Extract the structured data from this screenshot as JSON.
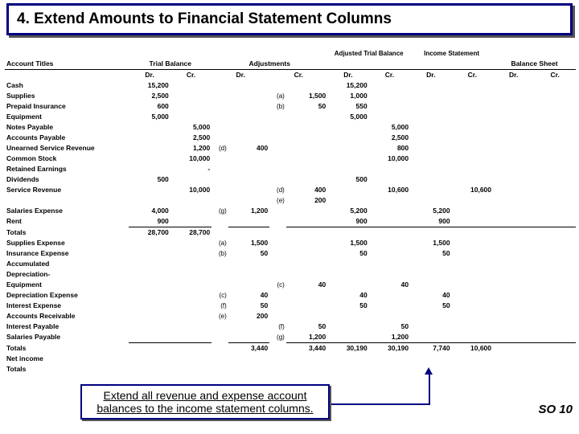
{
  "title": "4. Extend Amounts to Financial Statement Columns",
  "headers": {
    "acct": "Account Titles",
    "cols": [
      "Trial Balance",
      "Adjustments",
      "Adjusted Trial Balance",
      "Income Statement",
      "Balance Sheet"
    ],
    "drcr": [
      "Dr.",
      "Cr."
    ]
  },
  "rows": [
    {
      "acct": "Cash",
      "tb_dr": "15,200",
      "atb_dr": "15,200"
    },
    {
      "acct": "Supplies",
      "tb_dr": "2,500",
      "adj_cr_ref": "(a)",
      "adj_cr": "1,500",
      "atb_dr": "1,000"
    },
    {
      "acct": "Prepaid Insurance",
      "tb_dr": "600",
      "adj_cr_ref": "(b)",
      "adj_cr": "50",
      "atb_dr": "550"
    },
    {
      "acct": "Equipment",
      "tb_dr": "5,000",
      "atb_dr": "5,000"
    },
    {
      "acct": "Notes Payable",
      "tb_cr": "5,000",
      "atb_cr": "5,000"
    },
    {
      "acct": "Accounts Payable",
      "tb_cr": "2,500",
      "atb_cr": "2,500"
    },
    {
      "acct": "Unearned Service Revenue",
      "tb_cr": "1,200",
      "adj_dr_ref": "(d)",
      "adj_dr": "400",
      "atb_cr": "800"
    },
    {
      "acct": "Common Stock",
      "tb_cr": "10,000",
      "atb_cr": "10,000"
    },
    {
      "acct": "Retained Earnings",
      "tb_cr": "-"
    },
    {
      "acct": "Dividends",
      "tb_dr": "500",
      "atb_dr": "500"
    },
    {
      "acct": "Service Revenue",
      "tb_cr": "10,000",
      "adj_cr_ref": "(d)",
      "adj_cr": "400",
      "atb_cr": "10,600",
      "is_cr": "10,600"
    },
    {
      "acct": "",
      "adj_cr_ref": "(e)",
      "adj_cr": "200"
    },
    {
      "acct": "Salaries Expense",
      "tb_dr": "4,000",
      "adj_dr_ref": "(g)",
      "adj_dr": "1,200",
      "atb_dr": "5,200",
      "is_dr": "5,200"
    },
    {
      "acct": "Rent",
      "tb_dr": "900",
      "atb_dr": "900",
      "is_dr": "900"
    },
    {
      "acct": "   Totals",
      "tb_dr": "28,700",
      "tb_cr": "28,700",
      "tot": true
    },
    {
      "acct": "Supplies Expense",
      "adj_dr_ref": "(a)",
      "adj_dr": "1,500",
      "atb_dr": "1,500",
      "is_dr": "1,500"
    },
    {
      "acct": "Insurance Expense",
      "adj_dr_ref": "(b)",
      "adj_dr": "50",
      "atb_dr": "50",
      "is_dr": "50"
    },
    {
      "acct": "Accumulated"
    },
    {
      "acct": "  Depreciation-"
    },
    {
      "acct": "  Equipment",
      "adj_cr_ref": "(c)",
      "adj_cr": "40",
      "atb_cr": "40"
    },
    {
      "acct": "Depreciation Expense",
      "adj_dr_ref": "(c)",
      "adj_dr": "40",
      "atb_dr": "40",
      "is_dr": "40"
    },
    {
      "acct": "Interest Expense",
      "adj_dr_ref": "(f)",
      "adj_dr": "50",
      "atb_dr": "50",
      "is_dr": "50"
    },
    {
      "acct": "Accounts Receivable",
      "adj_dr_ref": "(e)",
      "adj_dr": "200"
    },
    {
      "acct": "Interest Payable",
      "adj_cr_ref": "(f)",
      "adj_cr": "50",
      "atb_cr": "50"
    },
    {
      "acct": "Salaries Payable",
      "adj_cr_ref": "(g)",
      "adj_cr": "1,200",
      "atb_cr": "1,200"
    },
    {
      "acct": "   Totals",
      "adj_dr": "3,440",
      "adj_cr": "3,440",
      "atb_dr": "30,190",
      "atb_cr": "30,190",
      "is_dr": "7,740",
      "is_cr": "10,600",
      "tot": true
    },
    {
      "acct": "Net income"
    },
    {
      "acct": "   Totals"
    }
  ],
  "callout": "Extend all revenue and expense account balances to the income statement columns.",
  "so": "SO 10"
}
